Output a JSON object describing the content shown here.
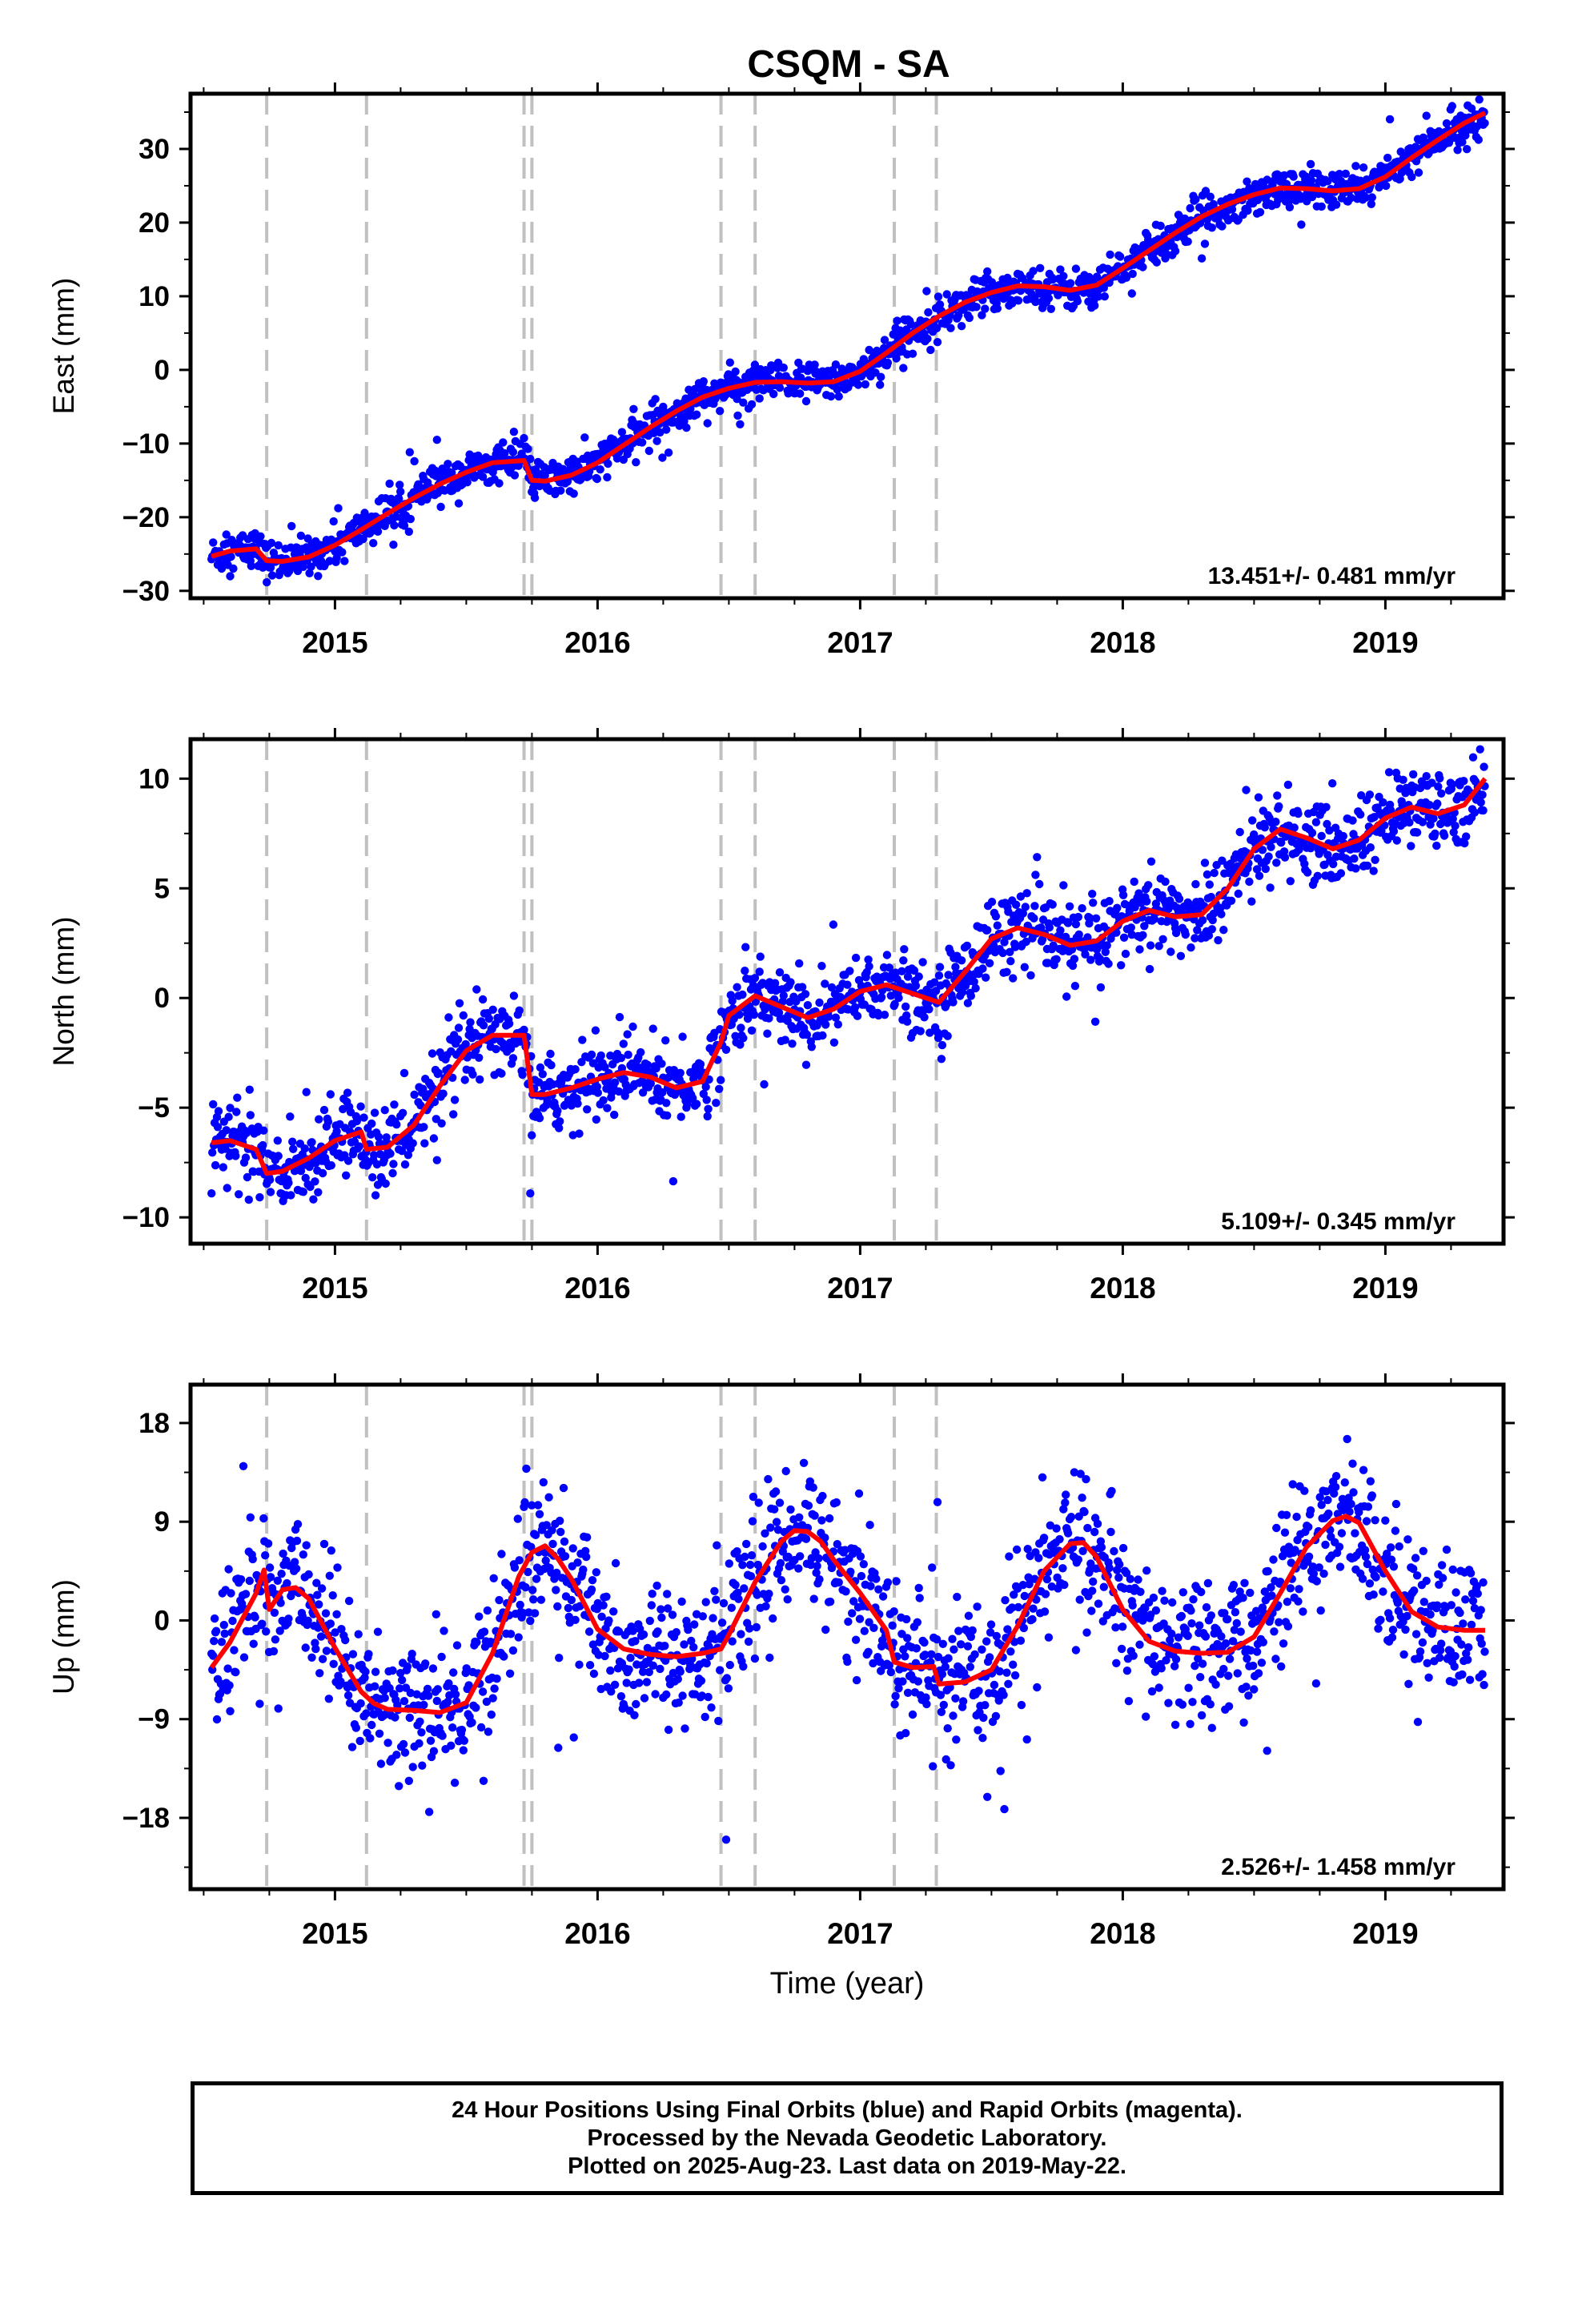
{
  "title": "CSQM - SA",
  "xlabel": "Time (year)",
  "footer": {
    "line1": "24 Hour Positions Using Final Orbits (blue) and Rapid Orbits (magenta).",
    "line2": "Processed by the Nevada Geodetic Laboratory.",
    "line3": "Plotted on 2025-Aug-23. Last data on 2019-May-22."
  },
  "colors": {
    "points": "#0000ff",
    "model": "#ff0000",
    "breaks": "#c0c0c0",
    "axes": "#000000"
  },
  "chart_data": [
    {
      "type": "scatter",
      "panel": "east",
      "ylabel": "East (mm)",
      "xlim": [
        2014.45,
        2019.45
      ],
      "ylim": [
        -31,
        37.5
      ],
      "yticks": [
        -30,
        -20,
        -10,
        0,
        10,
        20,
        30
      ],
      "yticklabels": [
        "−30",
        "−20",
        "−10",
        "0",
        "10",
        "20",
        "30"
      ],
      "xticks": [
        2015,
        2016,
        2017,
        2018,
        2019
      ],
      "xticklabels": [
        "2015",
        "2016",
        "2017",
        "2018",
        "2019"
      ],
      "rate_label": "13.451+/- 0.481 mm/yr",
      "steps": [
        2014.74,
        2015.12,
        2015.72,
        2015.75,
        2016.47,
        2016.6,
        2017.13,
        2017.29
      ],
      "series": [
        {
          "role": "model",
          "x": [
            2014.53,
            2014.6,
            2014.7,
            2014.74,
            2014.8,
            2014.9,
            2015.0,
            2015.1,
            2015.2,
            2015.3,
            2015.4,
            2015.5,
            2015.6,
            2015.72,
            2015.75,
            2015.8,
            2015.9,
            2016.0,
            2016.1,
            2016.2,
            2016.3,
            2016.4,
            2016.5,
            2016.6,
            2016.7,
            2016.8,
            2016.9,
            2017.0,
            2017.1,
            2017.2,
            2017.3,
            2017.4,
            2017.5,
            2017.6,
            2017.7,
            2017.8,
            2017.9,
            2018.0,
            2018.1,
            2018.2,
            2018.3,
            2018.4,
            2018.5,
            2018.6,
            2018.7,
            2018.8,
            2018.9,
            2019.0,
            2019.1,
            2019.2,
            2019.3,
            2019.38
          ],
          "y": [
            -25.3,
            -24.6,
            -24.3,
            -25.9,
            -26.0,
            -25.4,
            -23.8,
            -21.7,
            -19.5,
            -17.4,
            -15.5,
            -13.9,
            -12.6,
            -12.3,
            -15.0,
            -15.1,
            -14.3,
            -12.6,
            -10.2,
            -7.8,
            -5.6,
            -3.7,
            -2.5,
            -1.7,
            -1.6,
            -1.8,
            -1.6,
            -0.2,
            2.3,
            5.0,
            7.3,
            9.2,
            10.5,
            11.4,
            11.3,
            10.8,
            11.5,
            13.8,
            16.2,
            18.6,
            20.8,
            22.5,
            23.8,
            24.7,
            24.6,
            24.3,
            24.6,
            26.2,
            28.8,
            31.2,
            33.5,
            34.9
          ]
        }
      ]
    },
    {
      "type": "scatter",
      "panel": "north",
      "ylabel": "North (mm)",
      "xlim": [
        2014.45,
        2019.45
      ],
      "ylim": [
        -11.2,
        11.8
      ],
      "yticks": [
        -10,
        -5,
        0,
        5,
        10
      ],
      "yticklabels": [
        "−10",
        "−5",
        "0",
        "5",
        "10"
      ],
      "xticks": [
        2015,
        2016,
        2017,
        2018,
        2019
      ],
      "xticklabels": [
        "2015",
        "2016",
        "2017",
        "2018",
        "2019"
      ],
      "rate_label": "5.109+/- 0.345 mm/yr",
      "steps": [
        2014.74,
        2015.12,
        2015.72,
        2015.75,
        2016.47,
        2016.6,
        2017.13,
        2017.29
      ],
      "series": [
        {
          "role": "model",
          "x": [
            2014.53,
            2014.6,
            2014.7,
            2014.74,
            2014.8,
            2014.9,
            2015.0,
            2015.1,
            2015.12,
            2015.2,
            2015.3,
            2015.4,
            2015.5,
            2015.6,
            2015.7,
            2015.72,
            2015.75,
            2015.8,
            2015.9,
            2016.0,
            2016.1,
            2016.2,
            2016.3,
            2016.4,
            2016.47,
            2016.5,
            2016.6,
            2016.7,
            2016.8,
            2016.9,
            2017.0,
            2017.1,
            2017.2,
            2017.3,
            2017.4,
            2017.5,
            2017.6,
            2017.7,
            2017.8,
            2017.9,
            2018.0,
            2018.1,
            2018.2,
            2018.3,
            2018.4,
            2018.5,
            2018.6,
            2018.7,
            2018.8,
            2018.9,
            2019.0,
            2019.1,
            2019.2,
            2019.3,
            2019.38
          ],
          "y": [
            -6.6,
            -6.5,
            -6.9,
            -8.0,
            -7.9,
            -7.3,
            -6.5,
            -6.1,
            -6.9,
            -6.8,
            -5.8,
            -4.0,
            -2.4,
            -1.7,
            -1.7,
            -1.7,
            -4.4,
            -4.4,
            -4.1,
            -3.7,
            -3.4,
            -3.6,
            -4.1,
            -3.8,
            -2.0,
            -0.8,
            0.1,
            -0.4,
            -0.9,
            -0.5,
            0.3,
            0.6,
            0.2,
            -0.2,
            1.2,
            2.7,
            3.2,
            2.9,
            2.4,
            2.6,
            3.5,
            4.0,
            3.7,
            3.8,
            5.0,
            6.8,
            7.7,
            7.3,
            6.8,
            7.2,
            8.2,
            8.7,
            8.4,
            8.8,
            10.0
          ]
        }
      ]
    },
    {
      "type": "scatter",
      "panel": "up",
      "ylabel": "Up (mm)",
      "xlim": [
        2014.45,
        2019.45
      ],
      "ylim": [
        -24.5,
        21.5
      ],
      "yticks": [
        -18,
        -9,
        0,
        9,
        18
      ],
      "yticklabels": [
        "−18",
        "−9",
        "0",
        "9",
        "18"
      ],
      "xticks": [
        2015,
        2016,
        2017,
        2018,
        2019
      ],
      "xticklabels": [
        "2015",
        "2016",
        "2017",
        "2018",
        "2019"
      ],
      "rate_label": "2.526+/- 1.458 mm/yr",
      "steps": [
        2014.74,
        2015.12,
        2015.72,
        2015.75,
        2016.47,
        2016.6,
        2017.13,
        2017.29
      ],
      "series": [
        {
          "role": "model",
          "x": [
            2014.53,
            2014.6,
            2014.7,
            2014.73,
            2014.75,
            2014.8,
            2014.85,
            2014.9,
            2015.0,
            2015.1,
            2015.15,
            2015.2,
            2015.3,
            2015.4,
            2015.5,
            2015.6,
            2015.7,
            2015.75,
            2015.8,
            2015.85,
            2015.9,
            2016.0,
            2016.1,
            2016.2,
            2016.3,
            2016.4,
            2016.47,
            2016.5,
            2016.6,
            2016.7,
            2016.75,
            2016.8,
            2016.85,
            2016.9,
            2017.0,
            2017.1,
            2017.13,
            2017.2,
            2017.28,
            2017.3,
            2017.4,
            2017.5,
            2017.6,
            2017.7,
            2017.8,
            2017.85,
            2017.9,
            2018.0,
            2018.1,
            2018.2,
            2018.3,
            2018.4,
            2018.5,
            2018.6,
            2018.7,
            2018.8,
            2018.85,
            2018.9,
            2019.0,
            2019.1,
            2019.2,
            2019.3,
            2019.38
          ],
          "y": [
            -4.3,
            -2.0,
            2.5,
            4.6,
            1.0,
            2.8,
            3.0,
            2.0,
            -2.5,
            -6.5,
            -7.6,
            -8.1,
            -8.2,
            -8.4,
            -7.5,
            -3.0,
            4.0,
            6.2,
            6.8,
            5.6,
            3.8,
            -0.8,
            -2.6,
            -3.1,
            -3.3,
            -3.0,
            -2.6,
            -1.3,
            3.5,
            7.2,
            8.2,
            8.1,
            7.2,
            5.5,
            2.5,
            -0.9,
            -3.8,
            -4.3,
            -4.2,
            -5.8,
            -5.6,
            -4.5,
            -0.5,
            4.5,
            7.0,
            7.1,
            5.8,
            1.0,
            -1.9,
            -2.8,
            -3.0,
            -2.9,
            -1.5,
            2.5,
            6.7,
            9.1,
            9.5,
            8.9,
            4.5,
            0.8,
            -0.6,
            -0.9,
            -0.9
          ]
        }
      ]
    }
  ]
}
